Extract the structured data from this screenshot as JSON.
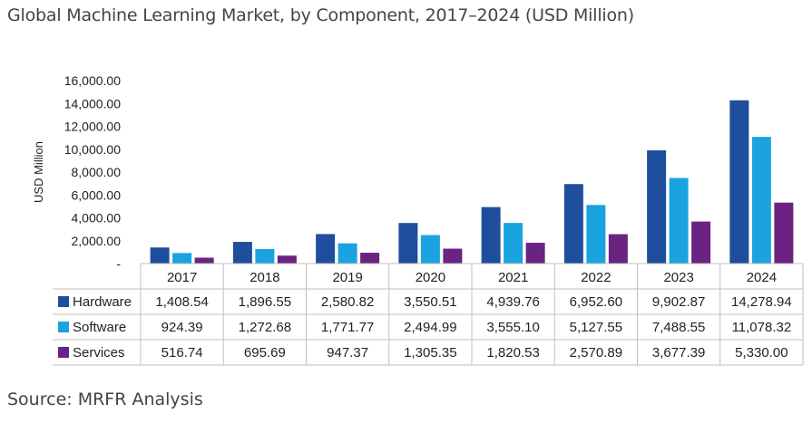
{
  "title": "Global Machine Learning Market, by Component, 2017–2024 (USD Million)",
  "source": "Source: MRFR Analysis",
  "colors": {
    "axis": "#bfbfbf",
    "text": "#222222"
  },
  "chart_data": {
    "type": "bar",
    "ylabel": "USD Million",
    "ylim": [
      0,
      16000
    ],
    "yticks": [
      "-",
      "2,000.00",
      "4,000.00",
      "6,000.00",
      "8,000.00",
      "10,000.00",
      "12,000.00",
      "14,000.00",
      "16,000.00"
    ],
    "categories": [
      "2017",
      "2018",
      "2019",
      "2020",
      "2021",
      "2022",
      "2023",
      "2024"
    ],
    "grid": false,
    "legend": "data-table",
    "series": [
      {
        "name": "Hardware",
        "color": "#1f4e9c",
        "values": [
          1408.54,
          1896.55,
          2580.82,
          3550.51,
          4939.76,
          6952.6,
          9902.87,
          14278.94
        ],
        "labels": [
          "1,408.54",
          "1,896.55",
          "2,580.82",
          "3,550.51",
          "4,939.76",
          "6,952.60",
          "9,902.87",
          "14,278.94"
        ]
      },
      {
        "name": "Software",
        "color": "#1ba3e0",
        "values": [
          924.39,
          1272.68,
          1771.77,
          2494.99,
          3555.1,
          5127.55,
          7488.55,
          11078.32
        ],
        "labels": [
          "924.39",
          "1,272.68",
          "1,771.77",
          "2,494.99",
          "3,555.10",
          "5,127.55",
          "7,488.55",
          "11,078.32"
        ]
      },
      {
        "name": "Services",
        "color": "#6b2382",
        "values": [
          516.74,
          695.69,
          947.37,
          1305.35,
          1820.53,
          2570.89,
          3677.39,
          5330.0
        ],
        "labels": [
          "516.74",
          "695.69",
          "947.37",
          "1,305.35",
          "1,820.53",
          "2,570.89",
          "3,677.39",
          "5,330.00"
        ]
      }
    ]
  }
}
